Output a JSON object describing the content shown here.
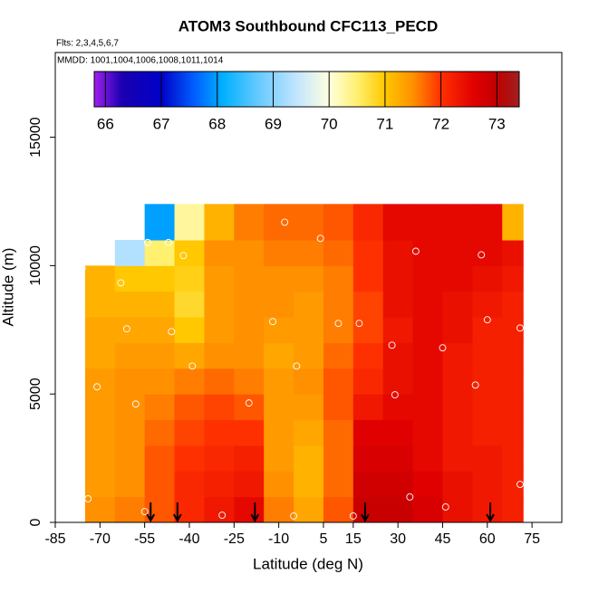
{
  "chart_data": {
    "type": "heatmap",
    "title": "ATOM3 Southbound CFC113_PECD",
    "flights_note": "Flts: 2,3,4,5,6,7",
    "dates_note": "MMDD: 1001,1004,1006,1008,1011,1014",
    "x_label": "Latitude (deg N)",
    "y_label": "Altitude (m)",
    "xlim": [
      -85,
      85
    ],
    "ylim": [
      0,
      18300
    ],
    "xticks": [
      -85,
      -70,
      -55,
      -40,
      -25,
      -10,
      5,
      15,
      30,
      45,
      60,
      75
    ],
    "yticks": [
      0,
      5000,
      10000,
      15000
    ],
    "x_bins": [
      -75,
      -65,
      -55,
      -45,
      -35,
      -25,
      -15,
      -5,
      5,
      15,
      25,
      35,
      45,
      55,
      65,
      72
    ],
    "y_bins": [
      0,
      1000,
      2000,
      3000,
      4000,
      5000,
      6000,
      7000,
      8000,
      9000,
      10000,
      11000,
      12400
    ],
    "z": [
      [
        71.5,
        71.6,
        71.8,
        72.1,
        72.3,
        72.5,
        71.6,
        71.3,
        71.8,
        72.9,
        72.9,
        72.7,
        72.4,
        72.3,
        72.2
      ],
      [
        71.4,
        71.5,
        71.8,
        72.1,
        72.2,
        72.3,
        71.5,
        71.2,
        71.7,
        72.8,
        72.8,
        72.6,
        72.4,
        72.3,
        72.2
      ],
      [
        71.4,
        71.5,
        71.8,
        72.0,
        72.1,
        72.2,
        71.4,
        71.2,
        71.7,
        72.7,
        72.7,
        72.5,
        72.3,
        72.3,
        72.2
      ],
      [
        71.4,
        71.5,
        71.7,
        71.9,
        72.0,
        72.0,
        71.4,
        71.3,
        71.7,
        72.6,
        72.6,
        72.5,
        72.3,
        72.2,
        72.2
      ],
      [
        71.4,
        71.5,
        71.6,
        71.8,
        71.9,
        71.8,
        71.4,
        71.4,
        71.8,
        72.3,
        72.5,
        72.5,
        72.3,
        72.2,
        72.2
      ],
      [
        71.4,
        71.5,
        71.5,
        71.6,
        71.7,
        71.6,
        71.4,
        71.5,
        71.8,
        72.1,
        72.4,
        72.5,
        72.3,
        72.2,
        72.2
      ],
      [
        71.3,
        71.4,
        71.4,
        71.3,
        71.5,
        71.5,
        71.3,
        71.4,
        71.7,
        72.0,
        72.4,
        72.5,
        72.3,
        72.2,
        72.2
      ],
      [
        71.3,
        71.3,
        71.3,
        71.0,
        71.4,
        71.5,
        71.4,
        71.4,
        71.6,
        71.9,
        72.3,
        72.5,
        72.4,
        72.2,
        72.2
      ],
      [
        71.2,
        71.2,
        71.2,
        70.8,
        71.4,
        71.5,
        71.5,
        71.4,
        71.6,
        71.9,
        72.4,
        72.5,
        72.4,
        72.3,
        72.2
      ],
      [
        71.2,
        71.0,
        71.0,
        70.9,
        71.4,
        71.5,
        71.5,
        71.5,
        71.6,
        72.0,
        72.4,
        72.5,
        72.5,
        72.4,
        72.3
      ],
      [
        null,
        69.3,
        70.5,
        71.0,
        71.5,
        71.5,
        71.6,
        71.6,
        71.7,
        72.0,
        72.4,
        72.5,
        72.5,
        72.5,
        72.4
      ],
      [
        null,
        null,
        68.0,
        70.3,
        71.2,
        71.6,
        71.7,
        71.7,
        71.8,
        72.1,
        72.5,
        72.5,
        72.5,
        72.5,
        71.2
      ]
    ],
    "clim": [
      65.8,
      73.4
    ],
    "cticks": [
      66,
      67,
      68,
      69,
      70,
      71,
      72,
      73
    ],
    "colorstops": [
      {
        "value": 65.8,
        "color": "#a020f0"
      },
      {
        "value": 66.3,
        "color": "#1a00b0"
      },
      {
        "value": 67,
        "color": "#0000c8"
      },
      {
        "value": 67.6,
        "color": "#0060ff"
      },
      {
        "value": 68.1,
        "color": "#00b0ff"
      },
      {
        "value": 68.7,
        "color": "#60c8ff"
      },
      {
        "value": 69.4,
        "color": "#c0e4ff"
      },
      {
        "value": 70,
        "color": "#ffffe0"
      },
      {
        "value": 70.5,
        "color": "#fff070"
      },
      {
        "value": 71,
        "color": "#ffc800"
      },
      {
        "value": 71.5,
        "color": "#ff9000"
      },
      {
        "value": 72,
        "color": "#ff3000"
      },
      {
        "value": 72.6,
        "color": "#e00000"
      },
      {
        "value": 73,
        "color": "#c00000"
      },
      {
        "value": 73.4,
        "color": "#a02020"
      }
    ],
    "points": {
      "x": [
        -63,
        -54,
        -47,
        -42,
        -8,
        4,
        23,
        36,
        58,
        -76,
        -61,
        -46,
        -12,
        10,
        17,
        28,
        45,
        60,
        71,
        -71,
        -58,
        -39,
        -20,
        -4,
        29,
        56,
        -74,
        -55,
        -29,
        -5,
        15,
        34,
        46,
        71
      ],
      "y": [
        9330,
        10900,
        10900,
        10390,
        11690,
        11060,
        12570,
        10560,
        10420,
        9900,
        7540,
        7430,
        7820,
        7750,
        7750,
        6900,
        6800,
        7890,
        7570,
        5280,
        4610,
        6090,
        4650,
        6090,
        4970,
        5350,
        920,
        420,
        280,
        250,
        250,
        990,
        600,
        1480
      ]
    },
    "arrows": [
      -53,
      -44,
      -18,
      19,
      61
    ]
  }
}
